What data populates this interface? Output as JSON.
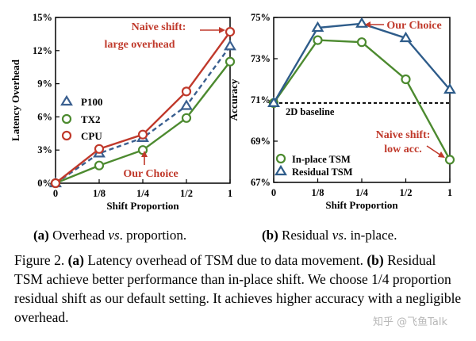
{
  "chart_data": [
    {
      "type": "line",
      "categories": [
        "0",
        "1/8",
        "1/4",
        "1/2",
        "1"
      ],
      "ylabel": "Latency Overhead",
      "xlabel": "Shift Proportion",
      "ylim": [
        0,
        15
      ],
      "yticks": [
        "0%",
        "3%",
        "6%",
        "9%",
        "12%",
        "15%"
      ],
      "grid": false,
      "legend_position": "left",
      "series": [
        {
          "name": "P100",
          "values": [
            0,
            2.7,
            4.1,
            7.0,
            12.4
          ],
          "color": "#3a5f8f",
          "marker": "triangle",
          "dash": "dashed"
        },
        {
          "name": "TX2",
          "values": [
            0,
            1.6,
            3.0,
            5.9,
            11.0
          ],
          "color": "#4c8a2f",
          "marker": "circle",
          "dash": "solid"
        },
        {
          "name": "CPU",
          "values": [
            0,
            3.1,
            4.4,
            8.3,
            13.7
          ],
          "color": "#c0392b",
          "marker": "circle",
          "dash": "solid"
        }
      ],
      "annotations": [
        {
          "text_lines": [
            "Naive shift:",
            "large overhead"
          ],
          "color": "#c0392b"
        },
        {
          "text_lines": [
            "Our Choice"
          ],
          "color": "#c0392b"
        }
      ]
    },
    {
      "type": "line",
      "categories": [
        "0",
        "1/8",
        "1/4",
        "1/2",
        "1"
      ],
      "ylabel": "Accuracy",
      "xlabel": "Shift Proportion",
      "ylim": [
        67,
        75
      ],
      "yticks": [
        "67%",
        "69%",
        "71%",
        "73%",
        "75%"
      ],
      "grid": false,
      "legend_position": "bottom-left",
      "baseline": {
        "value": 70.85,
        "label": "2D baseline"
      },
      "series": [
        {
          "name": "In-place TSM",
          "values": [
            70.85,
            73.9,
            73.8,
            72.0,
            68.1
          ],
          "color": "#4c8a2f",
          "marker": "circle"
        },
        {
          "name": "Residual TSM",
          "values": [
            70.85,
            74.5,
            74.7,
            74.0,
            71.5
          ],
          "color": "#2e5c8a",
          "marker": "triangle"
        }
      ],
      "annotations": [
        {
          "text_lines": [
            "Our Choice"
          ],
          "color": "#c0392b"
        },
        {
          "text_lines": [
            "Naive shift:",
            "low acc."
          ],
          "color": "#c0392b"
        }
      ]
    }
  ],
  "subcaptions": [
    {
      "label": "(a)",
      "text": " Overhead ",
      "italic": "vs",
      "rest": ". proportion."
    },
    {
      "label": "(b)",
      "text": " Residual ",
      "italic": "vs",
      "rest": ". in-place."
    }
  ],
  "caption": {
    "prefix": "Figure 2. ",
    "a_label": "(a)",
    "a_text": " Latency overhead of TSM due to data movement.",
    "b_label": "(b)",
    "b_text": " Residual TSM achieve better performance than in-place shift. We choose 1/4 proportion residual shift as our default setting. It achieves higher accuracy with a negligible overhead."
  },
  "watermark": "知乎 @飞鱼Talk"
}
